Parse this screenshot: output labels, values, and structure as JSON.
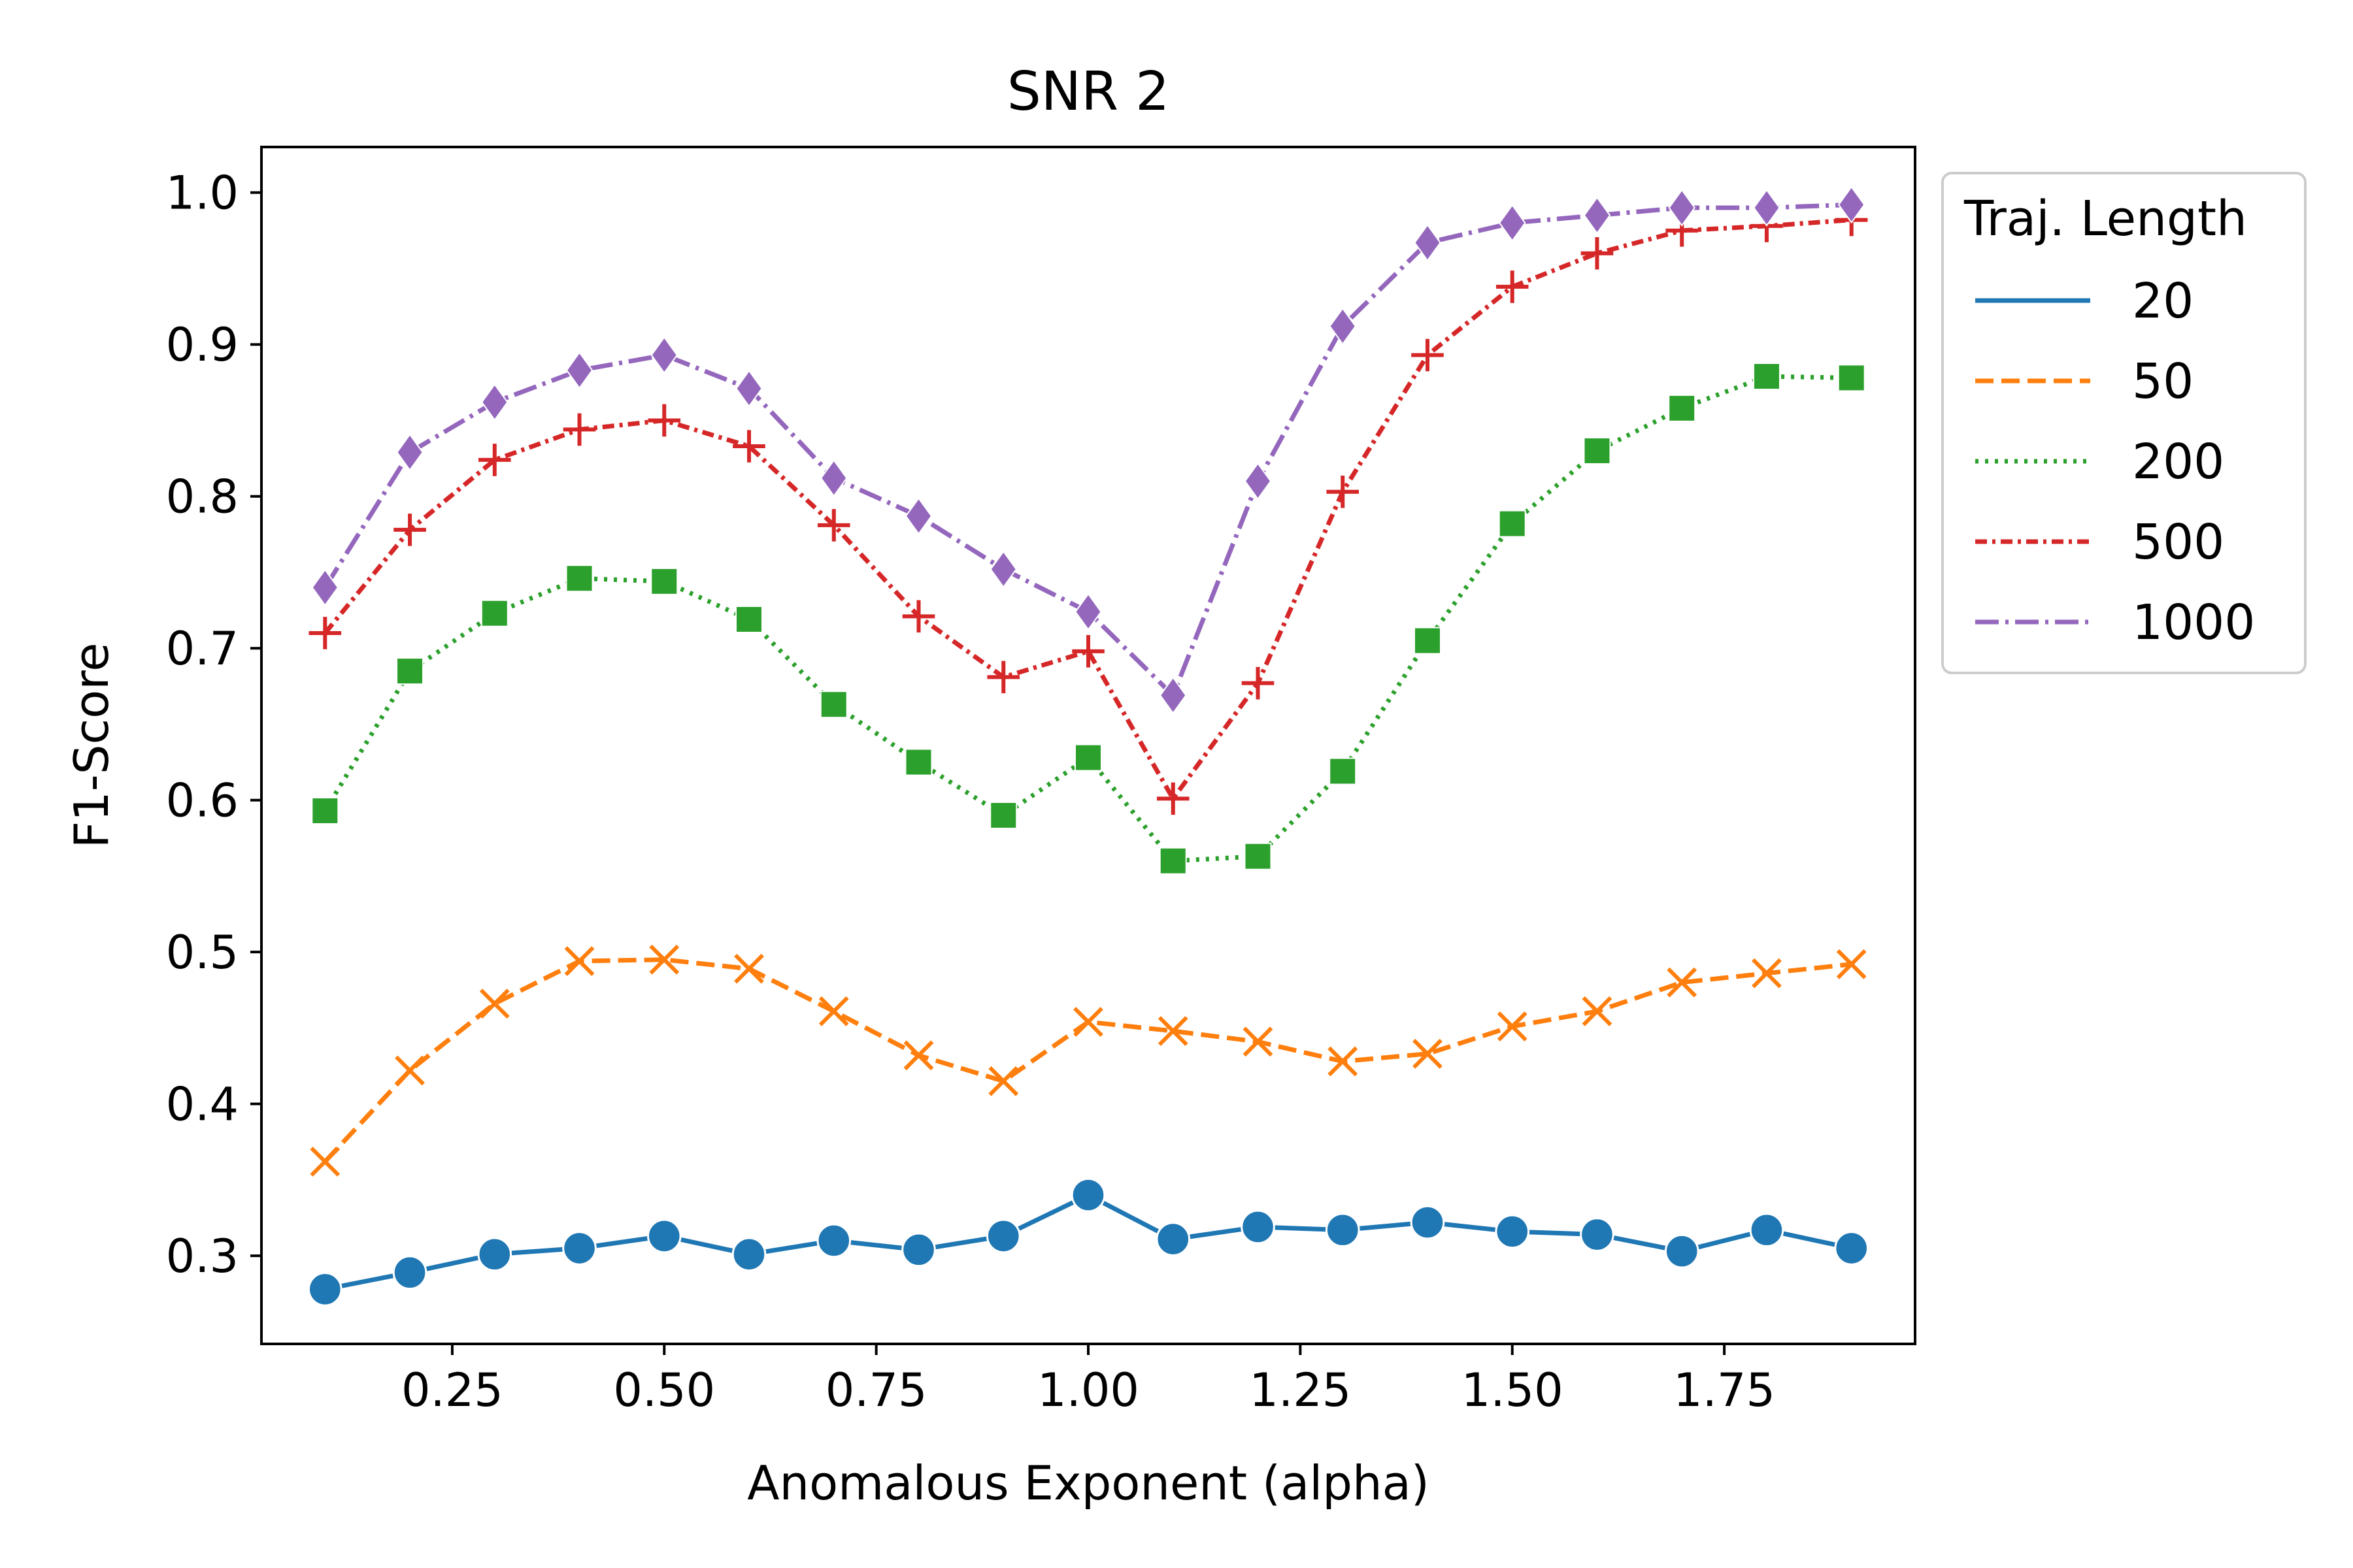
{
  "chart_data": {
    "type": "line",
    "title": "SNR 2",
    "xlabel": "Anomalous Exponent (alpha)",
    "ylabel": "F1-Score",
    "xlim": [
      0.025,
      1.975
    ],
    "ylim": [
      0.242,
      1.03
    ],
    "xticks": [
      0.25,
      0.5,
      0.75,
      1.0,
      1.25,
      1.5,
      1.75
    ],
    "xtick_labels": [
      "0.25",
      "0.50",
      "0.75",
      "1.00",
      "1.25",
      "1.50",
      "1.75"
    ],
    "yticks": [
      0.3,
      0.4,
      0.5,
      0.6,
      0.7,
      0.8,
      0.9,
      1.0
    ],
    "ytick_labels": [
      "0.3",
      "0.4",
      "0.5",
      "0.6",
      "0.7",
      "0.8",
      "0.9",
      "1.0"
    ],
    "grid": false,
    "legend": {
      "title": "Traj. Length",
      "placement": "outside-upper-right"
    },
    "x": [
      0.1,
      0.2,
      0.3,
      0.4,
      0.5,
      0.6,
      0.7,
      0.8,
      0.9,
      1.0,
      1.1,
      1.2,
      1.3,
      1.4,
      1.5,
      1.6,
      1.7,
      1.8,
      1.9
    ],
    "series": [
      {
        "name": "20",
        "color": "#1f77b4",
        "linestyle": "solid",
        "marker": "circle",
        "values": [
          0.278,
          0.289,
          0.301,
          0.305,
          0.313,
          0.301,
          0.31,
          0.304,
          0.313,
          0.34,
          0.311,
          0.319,
          0.317,
          0.322,
          0.316,
          0.314,
          0.303,
          0.317,
          0.305
        ]
      },
      {
        "name": "50",
        "color": "#ff7f0e",
        "linestyle": "dashed",
        "marker": "x",
        "values": [
          0.362,
          0.422,
          0.466,
          0.494,
          0.495,
          0.489,
          0.461,
          0.432,
          0.415,
          0.454,
          0.448,
          0.441,
          0.428,
          0.433,
          0.451,
          0.461,
          0.48,
          0.486,
          0.492
        ]
      },
      {
        "name": "200",
        "color": "#2ca02c",
        "linestyle": "dotted",
        "marker": "square",
        "values": [
          0.593,
          0.685,
          0.723,
          0.746,
          0.744,
          0.719,
          0.663,
          0.625,
          0.59,
          0.628,
          0.56,
          0.563,
          0.619,
          0.705,
          0.782,
          0.83,
          0.858,
          0.879,
          0.878
        ]
      },
      {
        "name": "500",
        "color": "#d62728",
        "linestyle": "dashdot-dense",
        "marker": "plus",
        "values": [
          0.71,
          0.778,
          0.824,
          0.844,
          0.85,
          0.833,
          0.781,
          0.721,
          0.681,
          0.698,
          0.601,
          0.677,
          0.803,
          0.893,
          0.938,
          0.96,
          0.975,
          0.978,
          0.982
        ]
      },
      {
        "name": "1000",
        "color": "#9467bd",
        "linestyle": "dashdot",
        "marker": "diamond",
        "values": [
          0.74,
          0.829,
          0.862,
          0.883,
          0.893,
          0.871,
          0.812,
          0.787,
          0.752,
          0.724,
          0.669,
          0.81,
          0.912,
          0.967,
          0.98,
          0.985,
          0.99,
          0.99,
          0.992
        ]
      }
    ]
  }
}
